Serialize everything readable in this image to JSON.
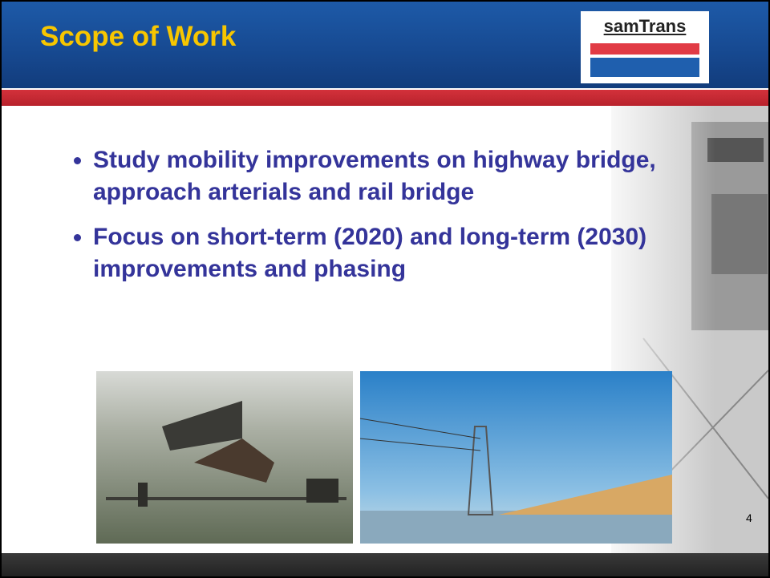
{
  "header": {
    "title": "Scope of Work",
    "logo": "samTrans"
  },
  "bullets": [
    "Study mobility improvements on highway bridge, approach arterials and rail bridge",
    "Focus on short-term (2020) and long-term (2030) improvements and phasing"
  ],
  "page_number": "4"
}
